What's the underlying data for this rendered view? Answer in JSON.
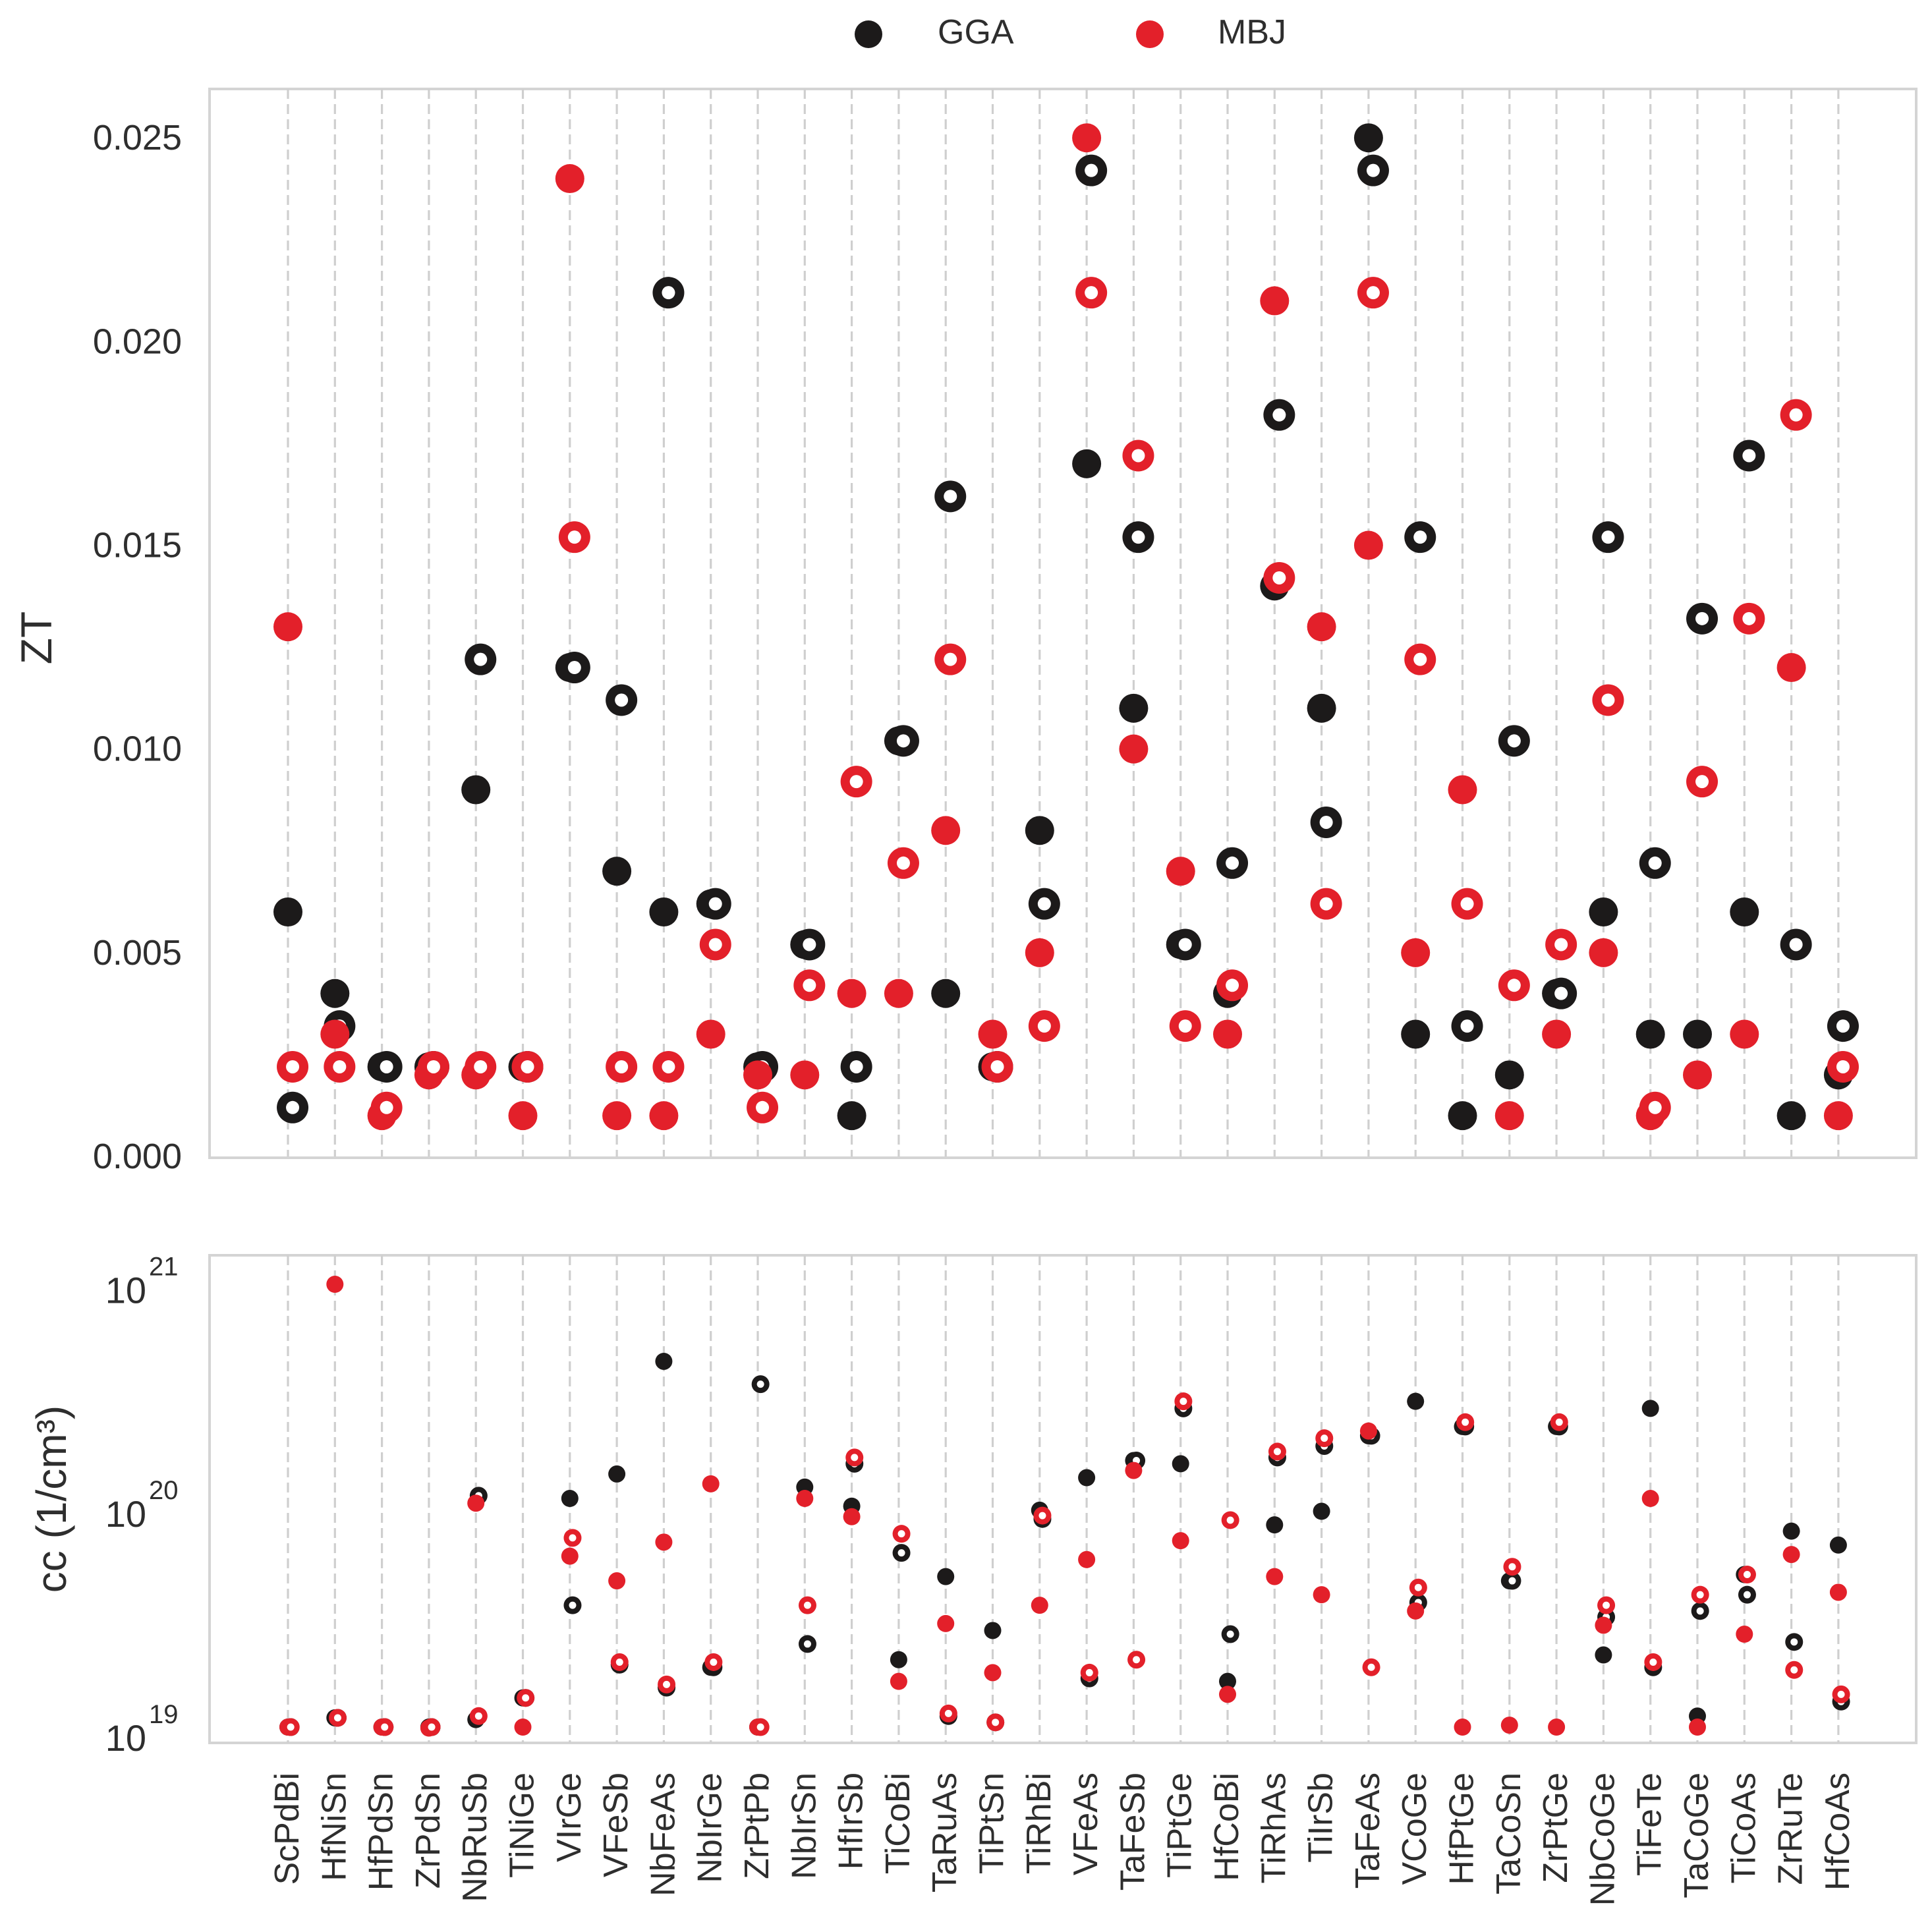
{
  "legend": {
    "entries": [
      {
        "label": "GGA",
        "color": "#1c1a1a"
      },
      {
        "label": "MBJ",
        "color": "#e3202a"
      }
    ]
  },
  "chart_data": [
    {
      "type": "scatter",
      "panel": "top",
      "ylabel": "ZT",
      "yscale": "linear",
      "ylim": [
        0.0,
        0.0262
      ],
      "yticks": [
        0.0,
        0.005,
        0.01,
        0.015,
        0.02,
        0.025
      ],
      "ytick_labels": [
        "0.000",
        "0.005",
        "0.010",
        "0.015",
        "0.020",
        "0.025"
      ],
      "grid": "vertical dashed",
      "categories": [
        "ScPdBi",
        "HfNiSn",
        "HfPdSn",
        "ZrPdSn",
        "NbRuSb",
        "TiNiGe",
        "VIrGe",
        "VFeSb",
        "NbFeAs",
        "NbIrGe",
        "ZrPtPb",
        "NbIrSn",
        "HfIrSb",
        "TiCoBi",
        "TaRuAs",
        "TiPtSn",
        "TiRhBi",
        "VFeAs",
        "TaFeSb",
        "TiPtGe",
        "HfCoBi",
        "TiRhAs",
        "TiIrSb",
        "TaFeAs",
        "VCoGe",
        "HfPtGe",
        "TaCoSn",
        "ZrPtGe",
        "NbCoGe",
        "TiFeTe",
        "TaCoGe",
        "TiCoAs",
        "ZrRuTe",
        "HfCoAs"
      ],
      "series": [
        {
          "name": "GGA filled",
          "color": "#1c1a1a",
          "marker": "filled",
          "values": [
            0.006,
            0.004,
            0.0022,
            0.0022,
            0.009,
            0.0022,
            0.012,
            0.007,
            0.006,
            0.0062,
            0.0022,
            0.0052,
            0.001,
            0.0102,
            0.004,
            0.0022,
            0.008,
            0.017,
            0.011,
            0.0052,
            0.004,
            0.014,
            0.011,
            0.025,
            0.003,
            0.001,
            0.002,
            0.004,
            0.006,
            0.003,
            0.003,
            0.006,
            0.001,
            0.002
          ]
        },
        {
          "name": "GGA ring",
          "color": "#1c1a1a",
          "marker": "ring",
          "values": [
            0.0012,
            0.0032,
            0.0022,
            0.0022,
            0.0122,
            0.0022,
            0.012,
            0.0112,
            0.0212,
            0.0062,
            0.0022,
            0.0052,
            0.0022,
            0.0102,
            0.0162,
            0.0022,
            0.0062,
            0.0242,
            0.0152,
            0.0052,
            0.0072,
            0.0182,
            0.0082,
            0.0242,
            0.0152,
            0.0032,
            0.0102,
            0.004,
            0.0152,
            0.0072,
            0.0132,
            0.0172,
            0.0052,
            0.0032
          ]
        },
        {
          "name": "MBJ filled",
          "color": "#e3202a",
          "marker": "filled",
          "values": [
            0.013,
            0.003,
            0.001,
            0.002,
            0.002,
            0.001,
            0.024,
            0.001,
            0.001,
            0.003,
            0.002,
            0.002,
            0.004,
            0.004,
            0.008,
            0.003,
            0.005,
            0.025,
            0.01,
            0.007,
            0.003,
            0.021,
            0.013,
            0.015,
            0.005,
            0.009,
            0.001,
            0.003,
            0.005,
            0.001,
            0.002,
            0.003,
            0.012,
            0.001
          ]
        },
        {
          "name": "MBJ ring",
          "color": "#e3202a",
          "marker": "ring",
          "values": [
            0.0022,
            0.0022,
            0.0012,
            0.0022,
            0.0022,
            0.0022,
            0.0152,
            0.0022,
            0.0022,
            0.0052,
            0.0012,
            0.0042,
            0.0092,
            0.0072,
            0.0122,
            0.0022,
            0.0032,
            0.0212,
            0.0172,
            0.0032,
            0.0042,
            0.0142,
            0.0062,
            0.0212,
            0.0122,
            0.0062,
            0.0042,
            0.0052,
            0.0112,
            0.0012,
            0.0092,
            0.0132,
            0.0182,
            0.0022
          ]
        }
      ]
    },
    {
      "type": "scatter",
      "panel": "bottom",
      "ylabel": "cc (1/cm³)",
      "yscale": "log",
      "ylim": [
        8.5e+18,
        1.28e+21
      ],
      "yticks": [
        1e+19,
        1e+20,
        1e+21
      ],
      "ytick_labels": [
        {
          "base": "10",
          "exp": "19"
        },
        {
          "base": "10",
          "exp": "20"
        },
        {
          "base": "10",
          "exp": "21"
        }
      ],
      "grid": "vertical dashed",
      "categories": [
        "ScPdBi",
        "HfNiSn",
        "HfPdSn",
        "ZrPdSn",
        "NbRuSb",
        "TiNiGe",
        "VIrGe",
        "VFeSb",
        "NbFeAs",
        "NbIrGe",
        "ZrPtPb",
        "NbIrSn",
        "HfIrSb",
        "TiCoBi",
        "TaRuAs",
        "TiPtSn",
        "TiRhBi",
        "VFeAs",
        "TaFeSb",
        "TiPtGe",
        "HfCoBi",
        "TiRhAs",
        "TiIrSb",
        "TaFeAs",
        "VCoGe",
        "HfPtGe",
        "TaCoSn",
        "ZrPtGe",
        "NbCoGe",
        "TiFeTe",
        "TaCoGe",
        "TiCoAs",
        "ZrRuTe",
        "HfCoAs"
      ],
      "series": [
        {
          "name": "GGA filled",
          "color": "#1c1a1a",
          "marker": "filled",
          "values": [
            1e+19,
            1.1e+19,
            1e+19,
            1e+19,
            1.08e+19,
            1.35e+19,
            1.05e+20,
            1.35e+20,
            4.3e+20,
            1.85e+19,
            1e+19,
            1.18e+20,
            9.7e+19,
            2e+19,
            4.7e+19,
            2.7e+19,
            9.3e+19,
            1.3e+20,
            1.55e+20,
            1.5e+20,
            1.6e+19,
            8e+19,
            9.2e+19,
            2e+20,
            2.85e+20,
            2.2e+20,
            4.5e+19,
            2.2e+20,
            2.1e+19,
            2.65e+20,
            1.12e+19,
            4.8e+19,
            7.5e+19,
            6.5e+19
          ]
        },
        {
          "name": "GGA ring",
          "color": "#1c1a1a",
          "marker": "ring",
          "values": [
            1e+19,
            1.1e+19,
            1e+19,
            1e+19,
            1.08e+20,
            1.35e+19,
            3.5e+19,
            1.9e+19,
            1.5e+19,
            1.85e+19,
            3.4e+20,
            2.35e+19,
            1.5e+20,
            6e+19,
            1.12e+19,
            1.05e+19,
            8.5e+19,
            1.65e+19,
            1.55e+20,
            2.65e+20,
            2.6e+19,
            1.6e+20,
            1.8e+20,
            2e+20,
            3.6e+19,
            2.2e+20,
            4.5e+19,
            2.2e+20,
            3.1e+19,
            1.85e+19,
            3.3e+19,
            3.9e+19,
            2.4e+19,
            1.3e+19
          ]
        },
        {
          "name": "MBJ filled",
          "color": "#e3202a",
          "marker": "filled",
          "values": [
            1e+19,
            9.5e+20,
            1e+19,
            9.9e+18,
            1e+20,
            1e+19,
            5.8e+19,
            4.5e+19,
            6.7e+19,
            1.22e+20,
            1e+19,
            1.05e+20,
            8.7e+19,
            1.6e+19,
            2.9e+19,
            1.75e+19,
            3.5e+19,
            5.6e+19,
            1.4e+20,
            6.8e+19,
            1.4e+19,
            4.7e+19,
            3.9e+19,
            2.1e+20,
            3.3e+19,
            1e+19,
            1.02e+19,
            1e+19,
            2.85e+19,
            1.05e+20,
            1e+19,
            2.6e+19,
            5.9e+19,
            4e+19
          ]
        },
        {
          "name": "MBJ ring",
          "color": "#e3202a",
          "marker": "ring",
          "values": [
            1e+19,
            1.1e+19,
            1e+19,
            1e+19,
            1.12e+19,
            1.35e+19,
            7e+19,
            1.95e+19,
            1.55e+19,
            1.95e+19,
            1e+19,
            3.5e+19,
            1.6e+20,
            7.3e+19,
            1.15e+19,
            1.05e+19,
            8.8e+19,
            1.75e+19,
            2e+19,
            2.85e+20,
            8.4e+19,
            1.7e+20,
            1.95e+20,
            1.85e+19,
            4.2e+19,
            2.3e+20,
            5.2e+19,
            2.3e+20,
            3.5e+19,
            1.95e+19,
            3.9e+19,
            4.8e+19,
            1.8e+19,
            1.4e+19
          ]
        }
      ]
    }
  ]
}
